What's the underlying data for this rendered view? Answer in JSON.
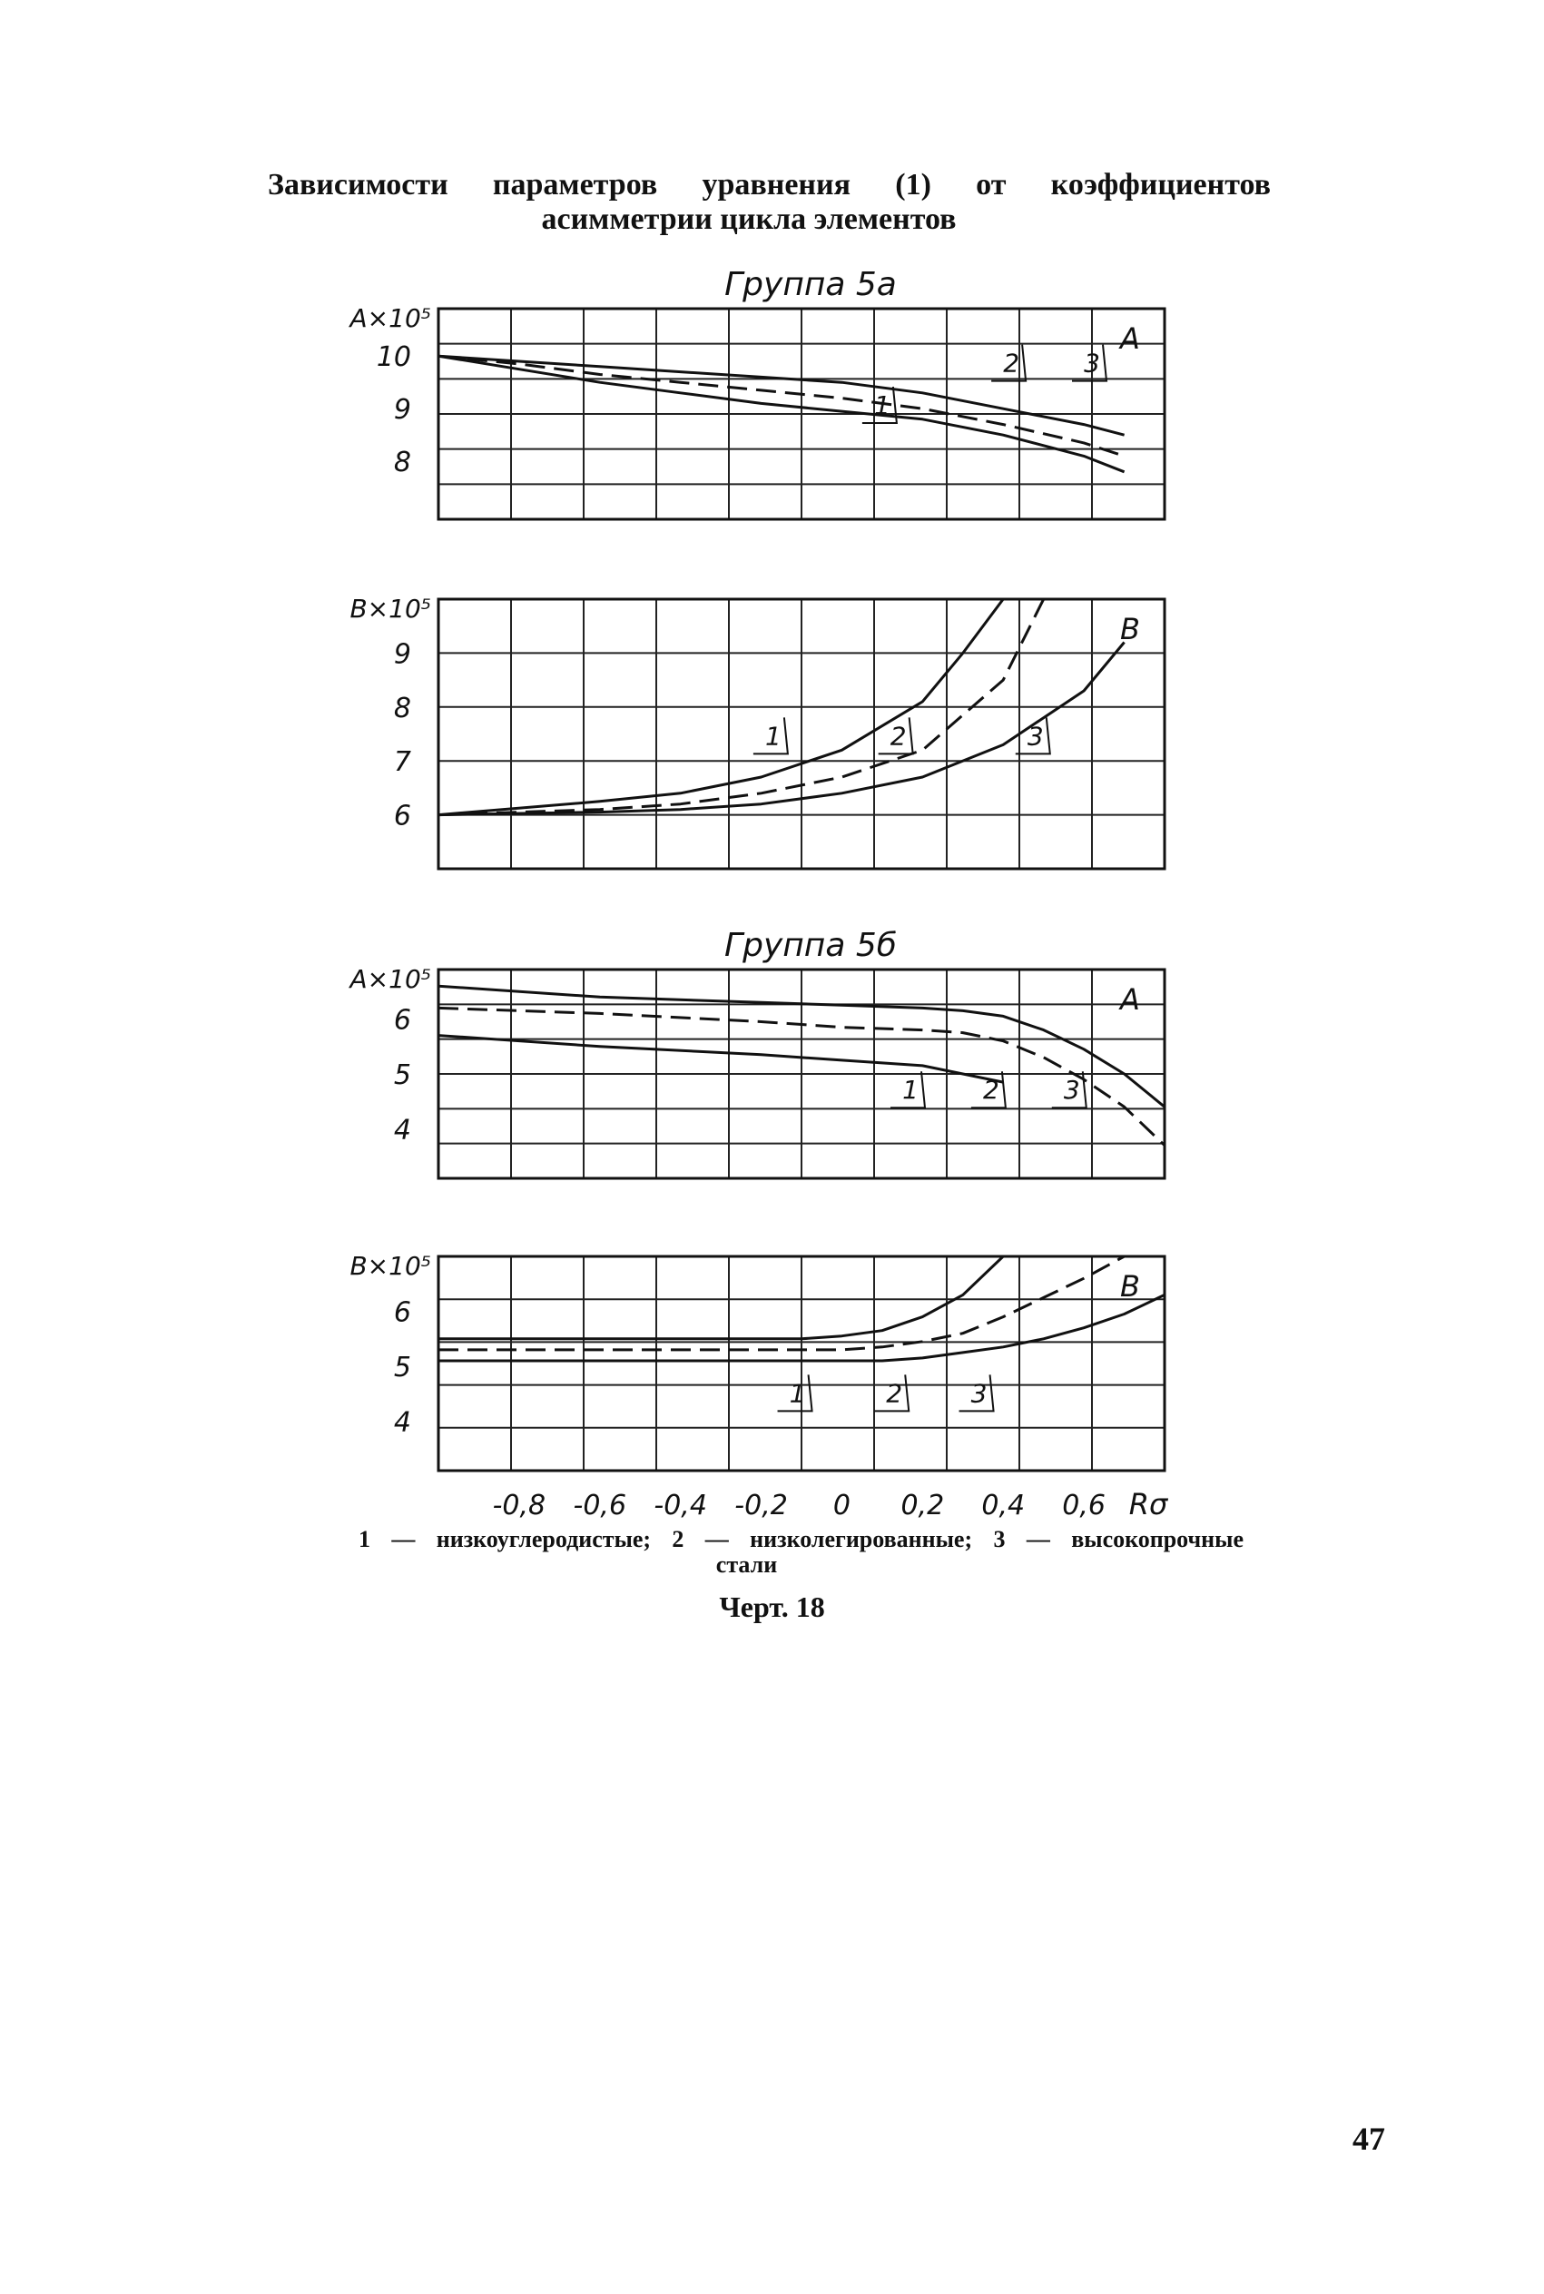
{
  "title": {
    "line1": "Зависимости параметров уравнения (1) от коэффициентов",
    "line2": "асимметрии цикла элементов"
  },
  "legend": {
    "line1": "1 — низкоуглеродистые; 2 — низколегированные; 3 — высокопрочные",
    "line2": "стали"
  },
  "figure_caption": "Черт. 18",
  "page_number": "47",
  "chart_data": [
    {
      "type": "line",
      "group": "Группа 5а",
      "ylabel": "A×10⁵",
      "panel_label": "A",
      "yticks": [
        "10",
        "9",
        "8"
      ],
      "ytick_values": [
        10,
        9,
        8
      ],
      "ylim": [
        6.9,
        10.9
      ],
      "xlim": [
        -1.0,
        0.8
      ],
      "grid": true,
      "series": [
        {
          "name": "1",
          "dash": false,
          "x": [
            -1.0,
            -0.8,
            -0.6,
            -0.4,
            -0.2,
            0.0,
            0.2,
            0.4,
            0.5,
            0.6,
            0.7
          ],
          "y": [
            10.0,
            9.75,
            9.5,
            9.3,
            9.1,
            8.95,
            8.8,
            8.5,
            8.3,
            8.1,
            7.8
          ]
        },
        {
          "name": "2",
          "dash": true,
          "x": [
            -1.0,
            -0.8,
            -0.6,
            -0.4,
            -0.2,
            0.0,
            0.2,
            0.4,
            0.6,
            0.7
          ],
          "y": [
            10.0,
            9.85,
            9.65,
            9.5,
            9.35,
            9.2,
            9.0,
            8.7,
            8.35,
            8.1
          ]
        },
        {
          "name": "3",
          "dash": false,
          "x": [
            -1.0,
            -0.8,
            -0.6,
            -0.4,
            -0.2,
            0.0,
            0.2,
            0.4,
            0.6,
            0.7
          ],
          "y": [
            10.0,
            9.9,
            9.8,
            9.7,
            9.6,
            9.5,
            9.3,
            9.0,
            8.7,
            8.5
          ]
        }
      ],
      "labels": [
        {
          "text": "1",
          "x": 0.1,
          "y": 8.9
        },
        {
          "text": "2",
          "x": 0.42,
          "y": 9.7
        },
        {
          "text": "3",
          "x": 0.62,
          "y": 9.7
        }
      ]
    },
    {
      "type": "line",
      "ylabel": "B×10⁵",
      "panel_label": "B",
      "yticks": [
        "9",
        "8",
        "7",
        "6"
      ],
      "ytick_values": [
        9,
        8,
        7,
        6
      ],
      "ylim": [
        5.0,
        10.0
      ],
      "xlim": [
        -1.0,
        0.8
      ],
      "grid": true,
      "series": [
        {
          "name": "1",
          "dash": false,
          "x": [
            -1.0,
            -0.6,
            -0.4,
            -0.2,
            0.0,
            0.2,
            0.3,
            0.4
          ],
          "y": [
            6.0,
            6.25,
            6.4,
            6.7,
            7.2,
            8.1,
            9.0,
            10.0
          ]
        },
        {
          "name": "2",
          "dash": true,
          "x": [
            -1.0,
            -0.6,
            -0.4,
            -0.2,
            0.0,
            0.2,
            0.4,
            0.5
          ],
          "y": [
            6.0,
            6.1,
            6.2,
            6.4,
            6.7,
            7.2,
            8.5,
            10.0
          ]
        },
        {
          "name": "3",
          "dash": false,
          "x": [
            -1.0,
            -0.6,
            -0.4,
            -0.2,
            0.0,
            0.2,
            0.4,
            0.6,
            0.7
          ],
          "y": [
            6.0,
            6.05,
            6.1,
            6.2,
            6.4,
            6.7,
            7.3,
            8.3,
            9.2
          ]
        }
      ],
      "labels": [
        {
          "text": "1",
          "x": -0.17,
          "y": 7.3
        },
        {
          "text": "2",
          "x": 0.14,
          "y": 7.3
        },
        {
          "text": "3",
          "x": 0.48,
          "y": 7.3
        }
      ]
    },
    {
      "type": "line",
      "group": "Группа 5б",
      "ylabel": "A×10⁵",
      "panel_label": "A",
      "yticks": [
        "6",
        "5",
        "4"
      ],
      "ytick_values": [
        6,
        5,
        4
      ],
      "ylim": [
        3.1,
        6.9
      ],
      "xlim": [
        -1.0,
        0.8
      ],
      "grid": true,
      "series": [
        {
          "name": "1",
          "dash": false,
          "x": [
            -1.0,
            -0.6,
            -0.2,
            0.0,
            0.2,
            0.3,
            0.4
          ],
          "y": [
            5.7,
            5.5,
            5.35,
            5.25,
            5.15,
            5.0,
            4.85
          ]
        },
        {
          "name": "2",
          "dash": true,
          "x": [
            -1.0,
            -0.6,
            -0.2,
            0.0,
            0.2,
            0.3,
            0.4,
            0.5,
            0.6,
            0.7,
            0.8
          ],
          "y": [
            6.2,
            6.1,
            5.95,
            5.85,
            5.8,
            5.75,
            5.6,
            5.3,
            4.9,
            4.4,
            3.7
          ]
        },
        {
          "name": "3",
          "dash": false,
          "x": [
            -1.0,
            -0.6,
            -0.2,
            0.0,
            0.2,
            0.3,
            0.4,
            0.5,
            0.6,
            0.7,
            0.8
          ],
          "y": [
            6.6,
            6.4,
            6.3,
            6.25,
            6.2,
            6.15,
            6.05,
            5.8,
            5.45,
            5.0,
            4.4
          ]
        }
      ],
      "labels": [
        {
          "text": "1",
          "x": 0.17,
          "y": 4.55
        },
        {
          "text": "2",
          "x": 0.37,
          "y": 4.55
        },
        {
          "text": "3",
          "x": 0.57,
          "y": 4.55
        }
      ]
    },
    {
      "type": "line",
      "ylabel": "B×10⁵",
      "panel_label": "B",
      "yticks": [
        "6",
        "5",
        "4"
      ],
      "ytick_values": [
        6,
        5,
        4
      ],
      "ylim": [
        3.1,
        7.0
      ],
      "xlim": [
        -1.0,
        0.8
      ],
      "xlabel": "Rσ",
      "xticks": [
        "-0,8",
        "-0,6",
        "-0,4",
        "-0,2",
        "0",
        "0,2",
        "0,4",
        "0,6"
      ],
      "xtick_values": [
        -0.8,
        -0.6,
        -0.4,
        -0.2,
        0,
        0.2,
        0.4,
        0.6
      ],
      "grid": true,
      "series": [
        {
          "name": "1",
          "dash": false,
          "x": [
            -1.0,
            -0.6,
            -0.2,
            -0.1,
            0.0,
            0.1,
            0.2,
            0.3,
            0.4
          ],
          "y": [
            5.5,
            5.5,
            5.5,
            5.5,
            5.55,
            5.65,
            5.9,
            6.3,
            7.0
          ]
        },
        {
          "name": "2",
          "dash": true,
          "x": [
            -1.0,
            -0.6,
            -0.2,
            0.0,
            0.1,
            0.2,
            0.3,
            0.4,
            0.5,
            0.6,
            0.7
          ],
          "y": [
            5.3,
            5.3,
            5.3,
            5.3,
            5.35,
            5.45,
            5.6,
            5.9,
            6.25,
            6.6,
            7.0
          ]
        },
        {
          "name": "3",
          "dash": false,
          "x": [
            -1.0,
            -0.6,
            -0.2,
            0.0,
            0.1,
            0.2,
            0.3,
            0.4,
            0.5,
            0.6,
            0.7,
            0.8
          ],
          "y": [
            5.1,
            5.1,
            5.1,
            5.1,
            5.1,
            5.15,
            5.25,
            5.35,
            5.5,
            5.7,
            5.95,
            6.3
          ]
        }
      ],
      "labels": [
        {
          "text": "1",
          "x": -0.11,
          "y": 4.35
        },
        {
          "text": "2",
          "x": 0.13,
          "y": 4.35
        },
        {
          "text": "3",
          "x": 0.34,
          "y": 4.35
        }
      ]
    }
  ]
}
